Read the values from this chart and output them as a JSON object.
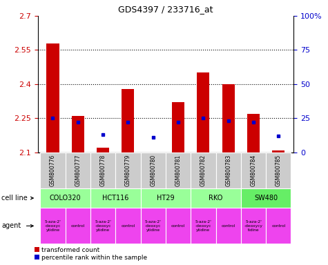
{
  "title": "GDS4397 / 233716_at",
  "samples": [
    "GSM800776",
    "GSM800777",
    "GSM800778",
    "GSM800779",
    "GSM800780",
    "GSM800781",
    "GSM800782",
    "GSM800783",
    "GSM800784",
    "GSM800785"
  ],
  "red_values": [
    2.58,
    2.26,
    2.12,
    2.38,
    2.1,
    2.32,
    2.45,
    2.4,
    2.27,
    2.11
  ],
  "blue_values_pct": [
    25,
    22,
    13,
    22,
    11,
    22,
    25,
    23,
    22,
    12
  ],
  "ylim": [
    2.1,
    2.7
  ],
  "y_ticks": [
    2.1,
    2.25,
    2.4,
    2.55,
    2.7
  ],
  "y_right_ticks": [
    0,
    25,
    50,
    75,
    100
  ],
  "dotted_lines": [
    2.25,
    2.4,
    2.55
  ],
  "bar_width": 0.5,
  "red_color": "#cc0000",
  "blue_color": "#0000cc",
  "cell_lines": [
    {
      "name": "COLO320",
      "start": 0,
      "end": 2,
      "color": "#99ff99"
    },
    {
      "name": "HCT116",
      "start": 2,
      "end": 4,
      "color": "#99ff99"
    },
    {
      "name": "HT29",
      "start": 4,
      "end": 6,
      "color": "#99ff99"
    },
    {
      "name": "RKO",
      "start": 6,
      "end": 8,
      "color": "#99ff99"
    },
    {
      "name": "SW480",
      "start": 8,
      "end": 10,
      "color": "#66ee66"
    }
  ],
  "agents": [
    {
      "name": "5-aza-2'\n-deoxyc\nytidine",
      "start": 0,
      "end": 1,
      "color": "#ee44ee"
    },
    {
      "name": "control",
      "start": 1,
      "end": 2,
      "color": "#ee44ee"
    },
    {
      "name": "5-aza-2'\n-deoxyc\nytidine",
      "start": 2,
      "end": 3,
      "color": "#ee44ee"
    },
    {
      "name": "control",
      "start": 3,
      "end": 4,
      "color": "#ee44ee"
    },
    {
      "name": "5-aza-2'\n-deoxyc\nytidine",
      "start": 4,
      "end": 5,
      "color": "#ee44ee"
    },
    {
      "name": "control",
      "start": 5,
      "end": 6,
      "color": "#ee44ee"
    },
    {
      "name": "5-aza-2'\n-deoxyc\nytidine",
      "start": 6,
      "end": 7,
      "color": "#ee44ee"
    },
    {
      "name": "control",
      "start": 7,
      "end": 8,
      "color": "#ee44ee"
    },
    {
      "name": "5-aza-2'\n-deoxycy\ntidine",
      "start": 8,
      "end": 9,
      "color": "#ee44ee"
    },
    {
      "name": "control",
      "start": 9,
      "end": 10,
      "color": "#ee44ee"
    }
  ],
  "label_cell_line": "cell line",
  "label_agent": "agent",
  "legend_red": "transformed count",
  "legend_blue": "percentile rank within the sample",
  "sample_bg_color": "#cccccc"
}
